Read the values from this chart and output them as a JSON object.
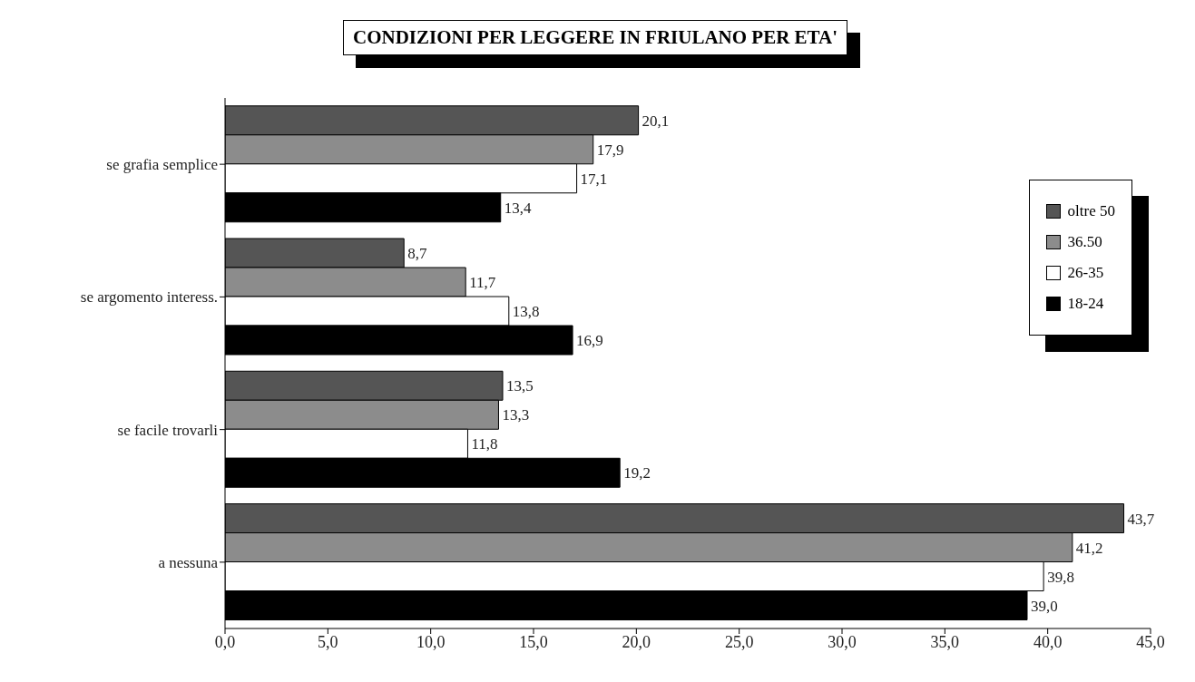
{
  "chart_data": {
    "type": "bar",
    "orientation": "horizontal",
    "title": "CONDIZIONI PER LEGGERE IN FRIULANO PER ETA'",
    "categories": [
      "se grafia semplice",
      "se argomento interess.",
      "se facile trovarli",
      "a nessuna"
    ],
    "series": [
      {
        "name": "oltre 50",
        "color": "#555555",
        "values": [
          20.1,
          8.7,
          13.5,
          43.7
        ],
        "value_labels": [
          "20,1",
          "8,7",
          "13,5",
          "43,7"
        ]
      },
      {
        "name": "36.50",
        "color": "#8c8c8c",
        "values": [
          17.9,
          11.7,
          13.3,
          41.2
        ],
        "value_labels": [
          "17,9",
          "11,7",
          "13,3",
          "41,2"
        ]
      },
      {
        "name": "26-35",
        "color": "#ffffff",
        "values": [
          17.1,
          13.8,
          11.8,
          39.8
        ],
        "value_labels": [
          "17,1",
          "13,8",
          "11,8",
          "39,8"
        ]
      },
      {
        "name": "18-24",
        "color": "#000000",
        "values": [
          13.4,
          16.9,
          19.2,
          39.0
        ],
        "value_labels": [
          "13,4",
          "16,9",
          "19,2",
          "39,0"
        ]
      }
    ],
    "xlim": [
      0,
      45
    ],
    "xticks": [
      {
        "value": 0,
        "label": "0,0"
      },
      {
        "value": 5,
        "label": "5,0"
      },
      {
        "value": 10,
        "label": "10,0"
      },
      {
        "value": 15,
        "label": "15,0"
      },
      {
        "value": 20,
        "label": "20,0"
      },
      {
        "value": 25,
        "label": "25,0"
      },
      {
        "value": 30,
        "label": "30,0"
      },
      {
        "value": 35,
        "label": "35,0"
      },
      {
        "value": 40,
        "label": "40,0"
      },
      {
        "value": 45,
        "label": "45,0"
      }
    ],
    "grid": false,
    "legend": "right"
  }
}
